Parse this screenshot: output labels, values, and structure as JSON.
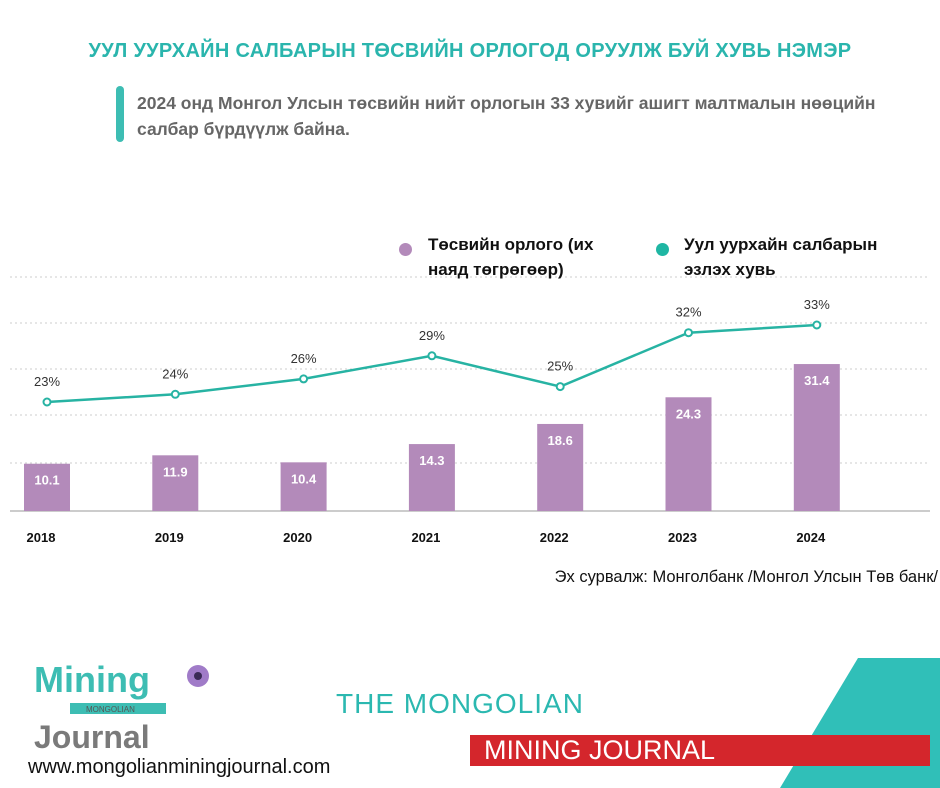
{
  "title": "УУЛ УУРХАЙН САЛБАРЫН ТӨСВИЙН ОРЛОГОД ОРУУЛЖ БУЙ ХУВЬ НЭМЭР",
  "subtitle": "2024 онд Монгол Улсын төсвийн нийт орлогын 33 хувийг ашигт малтмалын нөөцийн салбар бүрдүүлж байна.",
  "source": "Эх сурвалж: Монголбанк /Монгол Улсын Төв банк/",
  "footer": {
    "logo_text": "Mining Mongolian Journal",
    "url": "www.mongolianminingjournal.com",
    "brand_line1": "THE MONGOLIAN",
    "brand_line2": "MINING JOURNAL"
  },
  "colors": {
    "bar": "#b38aba",
    "line": "#27b3a3",
    "accent": "#2ab5ad",
    "brand_red": "#d4262c"
  },
  "chart_data": {
    "type": "bar+line",
    "categories": [
      "2018",
      "2019",
      "2020",
      "2021",
      "2022",
      "2023",
      "2024"
    ],
    "series": [
      {
        "name": "Төсвийн орлого (их наяд төгрөгөөр)",
        "type": "bar",
        "values": [
          10.1,
          11.9,
          10.4,
          14.3,
          18.6,
          24.3,
          31.4
        ],
        "labels": [
          "10.1",
          "11.9",
          "10.4",
          "14.3",
          "18.6",
          "24.3",
          "31.4"
        ]
      },
      {
        "name": "Уул уурхайн салбарын эзлэх хувь",
        "type": "line",
        "values": [
          23,
          24,
          26,
          29,
          25,
          32,
          33
        ],
        "labels": [
          "23%",
          "24%",
          "26%",
          "29%",
          "25%",
          "32%",
          "33%"
        ]
      }
    ],
    "legend": {
      "position": "top-right",
      "bar_line1": "Төсвийн орлого (их",
      "bar_line2": "наяд төгрөгөөр)",
      "line_line1": "Уул уурхайн салбарын",
      "line_line2": "эзлэх хувь"
    },
    "grid": true
  }
}
